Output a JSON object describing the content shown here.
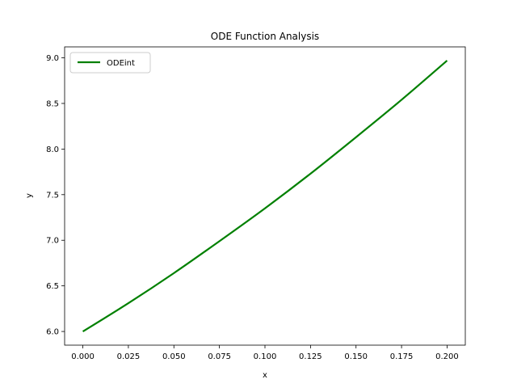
{
  "chart_data": {
    "type": "line",
    "title": "ODE Function Analysis",
    "xlabel": "x",
    "ylabel": "y",
    "xlim": [
      -0.01,
      0.21
    ],
    "ylim": [
      5.85,
      9.12
    ],
    "x_ticks": [
      0.0,
      0.025,
      0.05,
      0.075,
      0.1,
      0.125,
      0.15,
      0.175,
      0.2
    ],
    "x_tick_labels": [
      "0.000",
      "0.025",
      "0.050",
      "0.075",
      "0.100",
      "0.125",
      "0.150",
      "0.175",
      "0.200"
    ],
    "y_ticks": [
      6.0,
      6.5,
      7.0,
      7.5,
      8.0,
      8.5,
      9.0
    ],
    "y_tick_labels": [
      "6.0",
      "6.5",
      "7.0",
      "7.5",
      "8.0",
      "8.5",
      "9.0"
    ],
    "grid": false,
    "legend_position": "top-left",
    "series": [
      {
        "name": "ODEint",
        "color": "#008000",
        "x": [
          0.0,
          0.025,
          0.05,
          0.075,
          0.1,
          0.125,
          0.15,
          0.175,
          0.2
        ],
        "y": [
          6.0,
          6.31,
          6.64,
          6.99,
          7.35,
          7.73,
          8.13,
          8.54,
          8.97
        ]
      }
    ]
  }
}
